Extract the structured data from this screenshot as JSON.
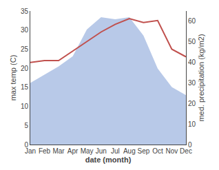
{
  "chart_data": {
    "type": "line",
    "xlabel": "date (month)",
    "ylabel": "max temp (C)",
    "y2label": "med. precipitation (kg/m2)",
    "categories": [
      "Jan",
      "Feb",
      "Mar",
      "Apr",
      "May",
      "Jun",
      "Jul",
      "Aug",
      "Sep",
      "Oct",
      "Nov",
      "Dec"
    ],
    "series": [
      {
        "type": "area",
        "axis": "y2",
        "color": "#b8c9e8",
        "values": [
          30.0,
          34.0,
          38.0,
          43.0,
          56.0,
          62.0,
          61.0,
          62.0,
          53.0,
          37.0,
          28.0,
          24.0
        ]
      },
      {
        "type": "line",
        "color": "#c0504d",
        "values": [
          21.5,
          22.0,
          22.0,
          24.5,
          27.0,
          29.5,
          31.5,
          33.0,
          32.0,
          32.5,
          25.0,
          23.0
        ]
      }
    ],
    "ylim": [
      0,
      35
    ],
    "yticks": [
      0,
      5,
      10,
      15,
      20,
      25,
      30,
      35
    ],
    "y2lim": [
      0,
      65
    ],
    "y2ticks": [
      0,
      10,
      20,
      30,
      40,
      50,
      60
    ],
    "grid": false
  }
}
